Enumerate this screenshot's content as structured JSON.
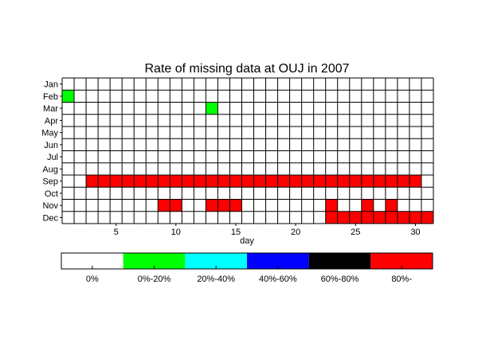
{
  "chart_data": {
    "type": "heatmap",
    "title": "Rate of missing data at OUJ in 2007",
    "xlabel": "day",
    "ylabel": "",
    "months": [
      "Jan",
      "Feb",
      "Mar",
      "Apr",
      "May",
      "Jun",
      "Jul",
      "Aug",
      "Sep",
      "Oct",
      "Nov",
      "Dec"
    ],
    "days": 31,
    "xticks": [
      5,
      10,
      15,
      20,
      25,
      30
    ],
    "grid": true,
    "legend": {
      "placement": "bottom",
      "bins": [
        {
          "label": "0%",
          "color": "#ffffff"
        },
        {
          "label": "0%-20%",
          "color": "#00ff00"
        },
        {
          "label": "20%-40%",
          "color": "#00ffff"
        },
        {
          "label": "40%-60%",
          "color": "#0000ff"
        },
        {
          "label": "60%-80%",
          "color": "#000000"
        },
        {
          "label": "80%-",
          "color": "#ff0000"
        }
      ]
    },
    "cells": [
      {
        "month": "Feb",
        "day": 1,
        "bin": 1
      },
      {
        "month": "Mar",
        "day": 13,
        "bin": 1
      },
      {
        "month": "Sep",
        "day": 3,
        "bin": 5
      },
      {
        "month": "Sep",
        "day": 4,
        "bin": 5
      },
      {
        "month": "Sep",
        "day": 5,
        "bin": 5
      },
      {
        "month": "Sep",
        "day": 6,
        "bin": 5
      },
      {
        "month": "Sep",
        "day": 7,
        "bin": 5
      },
      {
        "month": "Sep",
        "day": 8,
        "bin": 5
      },
      {
        "month": "Sep",
        "day": 9,
        "bin": 5
      },
      {
        "month": "Sep",
        "day": 10,
        "bin": 5
      },
      {
        "month": "Sep",
        "day": 11,
        "bin": 5
      },
      {
        "month": "Sep",
        "day": 12,
        "bin": 5
      },
      {
        "month": "Sep",
        "day": 13,
        "bin": 5
      },
      {
        "month": "Sep",
        "day": 14,
        "bin": 5
      },
      {
        "month": "Sep",
        "day": 15,
        "bin": 5
      },
      {
        "month": "Sep",
        "day": 16,
        "bin": 5
      },
      {
        "month": "Sep",
        "day": 17,
        "bin": 5
      },
      {
        "month": "Sep",
        "day": 18,
        "bin": 5
      },
      {
        "month": "Sep",
        "day": 19,
        "bin": 5
      },
      {
        "month": "Sep",
        "day": 20,
        "bin": 5
      },
      {
        "month": "Sep",
        "day": 21,
        "bin": 5
      },
      {
        "month": "Sep",
        "day": 22,
        "bin": 5
      },
      {
        "month": "Sep",
        "day": 23,
        "bin": 5
      },
      {
        "month": "Sep",
        "day": 24,
        "bin": 5
      },
      {
        "month": "Sep",
        "day": 25,
        "bin": 5
      },
      {
        "month": "Sep",
        "day": 26,
        "bin": 5
      },
      {
        "month": "Sep",
        "day": 27,
        "bin": 5
      },
      {
        "month": "Sep",
        "day": 28,
        "bin": 5
      },
      {
        "month": "Sep",
        "day": 29,
        "bin": 5
      },
      {
        "month": "Sep",
        "day": 30,
        "bin": 5
      },
      {
        "month": "Nov",
        "day": 9,
        "bin": 5
      },
      {
        "month": "Nov",
        "day": 10,
        "bin": 5
      },
      {
        "month": "Nov",
        "day": 13,
        "bin": 5
      },
      {
        "month": "Nov",
        "day": 14,
        "bin": 5
      },
      {
        "month": "Nov",
        "day": 15,
        "bin": 5
      },
      {
        "month": "Nov",
        "day": 23,
        "bin": 5
      },
      {
        "month": "Nov",
        "day": 26,
        "bin": 5
      },
      {
        "month": "Nov",
        "day": 28,
        "bin": 5
      },
      {
        "month": "Dec",
        "day": 23,
        "bin": 5
      },
      {
        "month": "Dec",
        "day": 24,
        "bin": 5
      },
      {
        "month": "Dec",
        "day": 25,
        "bin": 5
      },
      {
        "month": "Dec",
        "day": 26,
        "bin": 5
      },
      {
        "month": "Dec",
        "day": 27,
        "bin": 5
      },
      {
        "month": "Dec",
        "day": 28,
        "bin": 5
      },
      {
        "month": "Dec",
        "day": 29,
        "bin": 5
      },
      {
        "month": "Dec",
        "day": 30,
        "bin": 5
      },
      {
        "month": "Dec",
        "day": 31,
        "bin": 5
      }
    ]
  }
}
